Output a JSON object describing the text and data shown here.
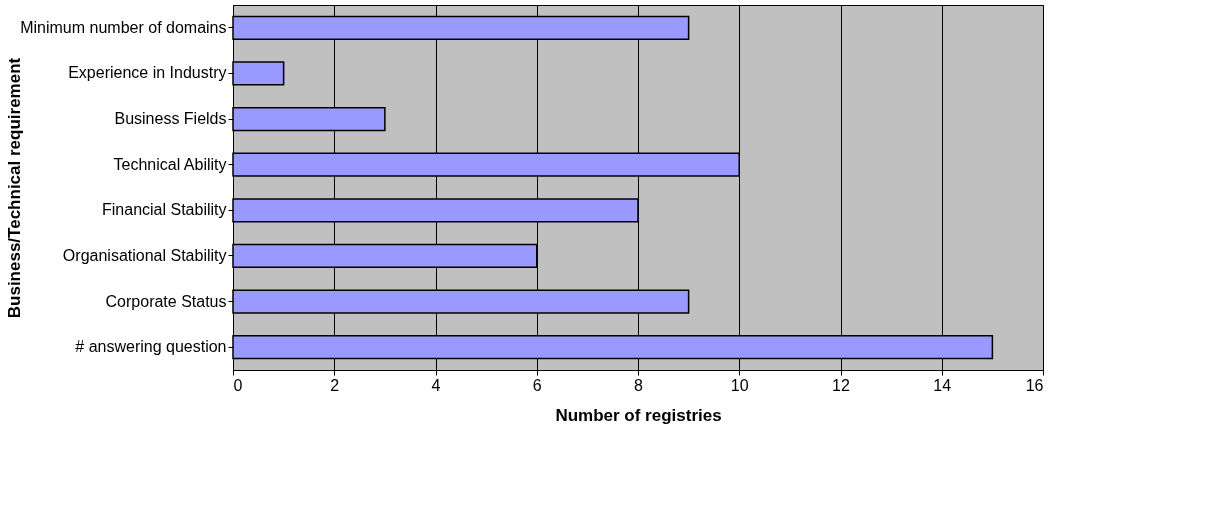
{
  "chart_data": {
    "type": "bar",
    "orientation": "horizontal",
    "xlabel": "Number of registries",
    "ylabel": "Business/Technical requirement",
    "categories": [
      "Minimum number of domains",
      "Experience in Industry",
      "Business Fields",
      "Technical Ability",
      "Financial Stability",
      "Organisational Stability",
      "Corporate Status",
      "# answering question"
    ],
    "values": [
      9,
      1,
      3,
      10,
      8,
      6,
      9,
      15
    ],
    "color": "#9999ff",
    "xlim": [
      0,
      16
    ],
    "xticks": [
      0,
      2,
      4,
      6,
      8,
      10,
      12,
      14,
      16
    ],
    "grid": "x"
  }
}
